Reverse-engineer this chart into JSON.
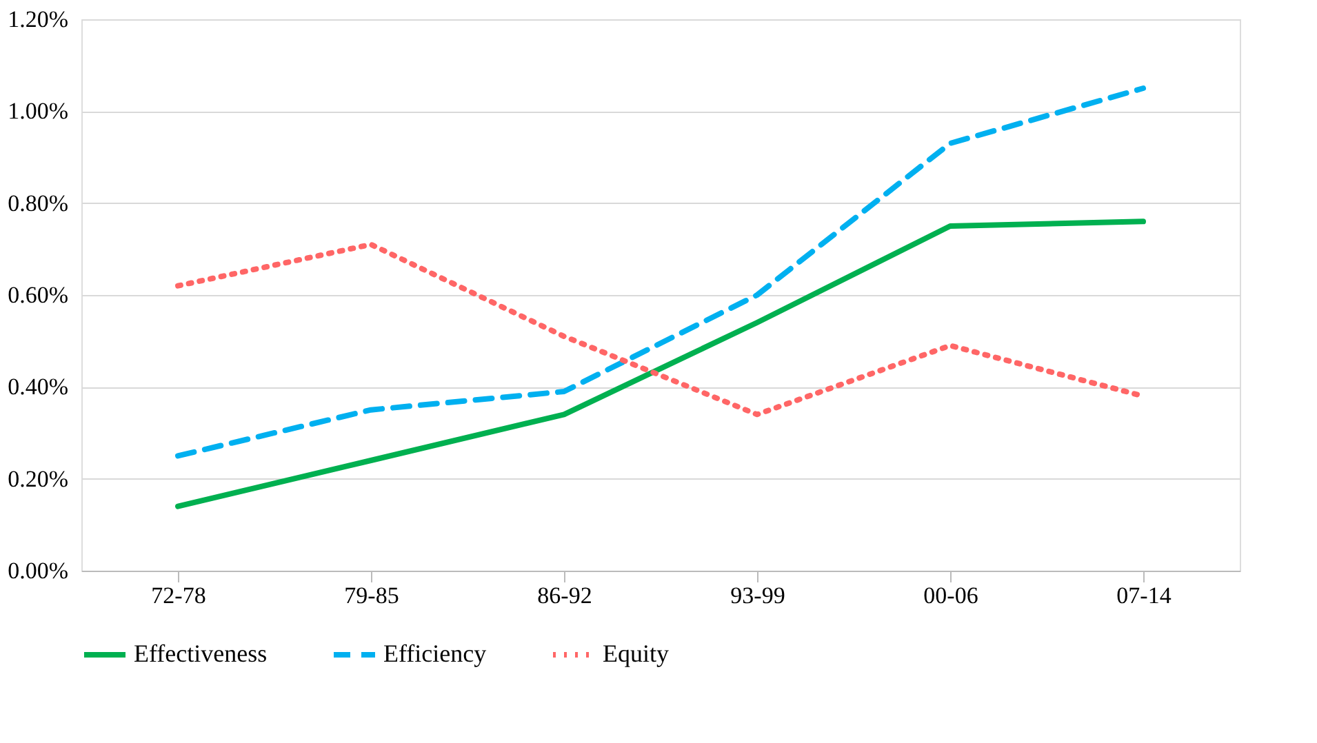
{
  "chart_data": {
    "type": "line",
    "categories": [
      "72-78",
      "79-85",
      "86-92",
      "93-99",
      "00-06",
      "07-14"
    ],
    "series": [
      {
        "name": "Effectiveness",
        "color": "#00b050",
        "line_style": "solid",
        "values": [
          0.14,
          0.24,
          0.34,
          0.54,
          0.75,
          0.76
        ]
      },
      {
        "name": "Efficiency",
        "color": "#00b0f0",
        "line_style": "dashed",
        "values": [
          0.25,
          0.35,
          0.39,
          0.6,
          0.93,
          1.05
        ]
      },
      {
        "name": "Equity",
        "color": "#ff6666",
        "line_style": "dotted",
        "values": [
          0.62,
          0.71,
          0.51,
          0.34,
          0.49,
          0.38
        ]
      }
    ],
    "ylim": [
      0,
      1.2
    ],
    "yticks": [
      {
        "value": 0,
        "label": "0.00%"
      },
      {
        "value": 0.2,
        "label": "0.20%"
      },
      {
        "value": 0.4,
        "label": "0.40%"
      },
      {
        "value": 0.6,
        "label": "0.60%"
      },
      {
        "value": 0.8,
        "label": "0.80%"
      },
      {
        "value": 1.0,
        "label": "1.00%"
      },
      {
        "value": 1.2,
        "label": "1.20%"
      }
    ],
    "grid": "y",
    "legend": "bottom",
    "marker": "none"
  }
}
